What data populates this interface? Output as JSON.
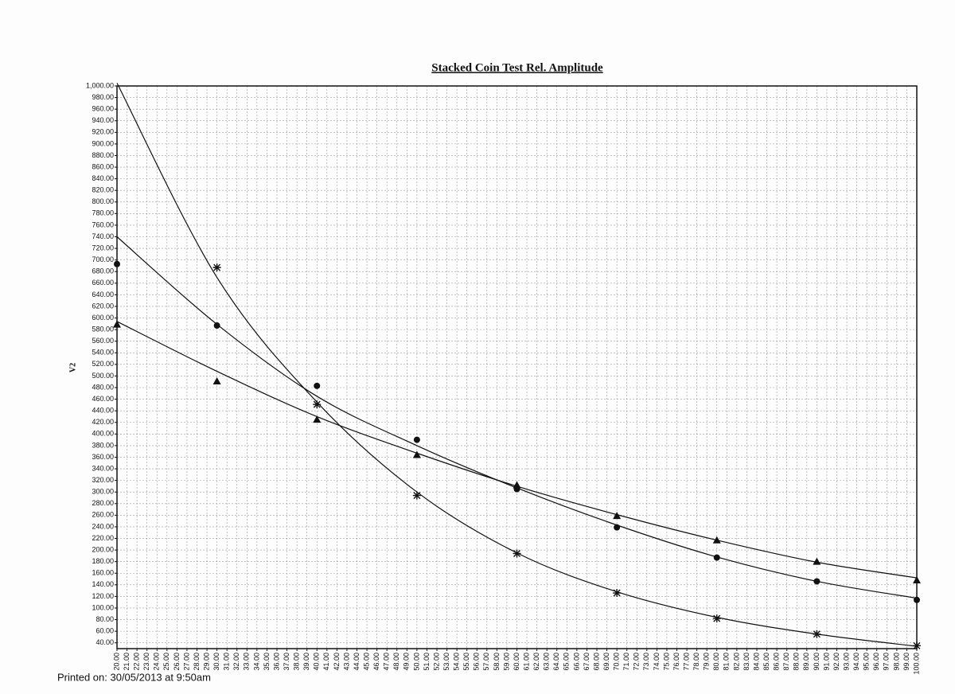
{
  "chart_data": {
    "type": "scatter",
    "title": "Stacked Coin Test  Rel. Amplitude",
    "y_label": "V2",
    "footer": "Printed on: 30/05/2013 at 9:50am",
    "grid": true,
    "x": [
      20,
      30,
      40,
      50,
      60,
      70,
      80,
      90,
      100
    ],
    "series": [
      {
        "marker": "star",
        "color": "#111111",
        "values": [
          null,
          687,
          451,
          294,
          194,
          126,
          82,
          55,
          35
        ],
        "fit": [
          1005,
          670,
          455,
          300,
          195,
          128,
          84,
          55,
          34
        ]
      },
      {
        "marker": "circle",
        "color": "#111111",
        "values": [
          693,
          587,
          483,
          390,
          305,
          239,
          187,
          146,
          114
        ],
        "fit": [
          740,
          589,
          465,
          380,
          307,
          243,
          188,
          146,
          117
        ]
      },
      {
        "marker": "triangle",
        "color": "#111111",
        "values": [
          589,
          491,
          425,
          364,
          312,
          259,
          217,
          180,
          148
        ],
        "fit": [
          594,
          508,
          430,
          367,
          310,
          261,
          217,
          179,
          152
        ]
      }
    ],
    "xlim": [
      20,
      100
    ],
    "ylim": [
      30,
      1000
    ],
    "xticks": [
      {
        "value": 20,
        "label": "20.00"
      },
      {
        "value": 21,
        "label": "21.00"
      },
      {
        "value": 22,
        "label": "22.00"
      },
      {
        "value": 23,
        "label": "23.00"
      },
      {
        "value": 24,
        "label": "24.00"
      },
      {
        "value": 25,
        "label": "25.00"
      },
      {
        "value": 26,
        "label": "26.00"
      },
      {
        "value": 27,
        "label": "27.00"
      },
      {
        "value": 28,
        "label": "28.00"
      },
      {
        "value": 29,
        "label": "29.00"
      },
      {
        "value": 30,
        "label": "30.00"
      },
      {
        "value": 31,
        "label": "31.00"
      },
      {
        "value": 32,
        "label": "32.00"
      },
      {
        "value": 33,
        "label": "33.00"
      },
      {
        "value": 34,
        "label": "34.00"
      },
      {
        "value": 35,
        "label": "35.00"
      },
      {
        "value": 36,
        "label": "36.00"
      },
      {
        "value": 37,
        "label": "37.00"
      },
      {
        "value": 38,
        "label": "38.00"
      },
      {
        "value": 39,
        "label": "39.00"
      },
      {
        "value": 40,
        "label": "40.00"
      },
      {
        "value": 41,
        "label": "41.00"
      },
      {
        "value": 42,
        "label": "42.00"
      },
      {
        "value": 43,
        "label": "43.00"
      },
      {
        "value": 44,
        "label": "44.00"
      },
      {
        "value": 45,
        "label": "45.00"
      },
      {
        "value": 46,
        "label": "46.00"
      },
      {
        "value": 47,
        "label": "47.00"
      },
      {
        "value": 48,
        "label": "48.00"
      },
      {
        "value": 49,
        "label": "49.00"
      },
      {
        "value": 50,
        "label": "50.00"
      },
      {
        "value": 51,
        "label": "51.00"
      },
      {
        "value": 52,
        "label": "52.00"
      },
      {
        "value": 53,
        "label": "53.00"
      },
      {
        "value": 54,
        "label": "54.00"
      },
      {
        "value": 55,
        "label": "55.00"
      },
      {
        "value": 56,
        "label": "56.00"
      },
      {
        "value": 57,
        "label": "57.00"
      },
      {
        "value": 58,
        "label": "58.00"
      },
      {
        "value": 59,
        "label": "59.00"
      },
      {
        "value": 60,
        "label": "60.00"
      },
      {
        "value": 61,
        "label": "61.00"
      },
      {
        "value": 62,
        "label": "62.00"
      },
      {
        "value": 63,
        "label": "63.00"
      },
      {
        "value": 64,
        "label": "64.00"
      },
      {
        "value": 65,
        "label": "65.00"
      },
      {
        "value": 66,
        "label": "66.00"
      },
      {
        "value": 67,
        "label": "67.00"
      },
      {
        "value": 68,
        "label": "68.00"
      },
      {
        "value": 69,
        "label": "69.00"
      },
      {
        "value": 70,
        "label": "70.00"
      },
      {
        "value": 71,
        "label": "71.00"
      },
      {
        "value": 72,
        "label": "72.00"
      },
      {
        "value": 73,
        "label": "73.00"
      },
      {
        "value": 74,
        "label": "74.00"
      },
      {
        "value": 75,
        "label": "75.00"
      },
      {
        "value": 76,
        "label": "76.00"
      },
      {
        "value": 77,
        "label": "77.00"
      },
      {
        "value": 78,
        "label": "78.00"
      },
      {
        "value": 79,
        "label": "79.00"
      },
      {
        "value": 80,
        "label": "80.00"
      },
      {
        "value": 81,
        "label": "81.00"
      },
      {
        "value": 82,
        "label": "82.00"
      },
      {
        "value": 83,
        "label": "83.00"
      },
      {
        "value": 84,
        "label": "84.00"
      },
      {
        "value": 85,
        "label": "85.00"
      },
      {
        "value": 86,
        "label": "86.00"
      },
      {
        "value": 87,
        "label": "87.00"
      },
      {
        "value": 88,
        "label": "88.00"
      },
      {
        "value": 89,
        "label": "89.00"
      },
      {
        "value": 90,
        "label": "90.00"
      },
      {
        "value": 91,
        "label": "91.00"
      },
      {
        "value": 92,
        "label": "92.00"
      },
      {
        "value": 93,
        "label": "93.00"
      },
      {
        "value": 94,
        "label": "94.00"
      },
      {
        "value": 95,
        "label": "95.00"
      },
      {
        "value": 96,
        "label": "96.00"
      },
      {
        "value": 97,
        "label": "97.00"
      },
      {
        "value": 98,
        "label": "98.00"
      },
      {
        "value": 99,
        "label": "99.00"
      },
      {
        "value": 100,
        "label": "100.00"
      }
    ],
    "yticks": [
      {
        "value": 40,
        "label": "40.00"
      },
      {
        "value": 60,
        "label": "60.00"
      },
      {
        "value": 80,
        "label": "80.00"
      },
      {
        "value": 100,
        "label": "100.00"
      },
      {
        "value": 120,
        "label": "120.00"
      },
      {
        "value": 140,
        "label": "140.00"
      },
      {
        "value": 160,
        "label": "160.00"
      },
      {
        "value": 180,
        "label": "180.00"
      },
      {
        "value": 200,
        "label": "200.00"
      },
      {
        "value": 220,
        "label": "220.00"
      },
      {
        "value": 240,
        "label": "240.00"
      },
      {
        "value": 260,
        "label": "260.00"
      },
      {
        "value": 280,
        "label": "280.00"
      },
      {
        "value": 300,
        "label": "300.00"
      },
      {
        "value": 320,
        "label": "320.00"
      },
      {
        "value": 340,
        "label": "340.00"
      },
      {
        "value": 360,
        "label": "360.00"
      },
      {
        "value": 380,
        "label": "380.00"
      },
      {
        "value": 400,
        "label": "400.00"
      },
      {
        "value": 420,
        "label": "420.00"
      },
      {
        "value": 440,
        "label": "440.00"
      },
      {
        "value": 460,
        "label": "460.00"
      },
      {
        "value": 480,
        "label": "480.00"
      },
      {
        "value": 500,
        "label": "500.00"
      },
      {
        "value": 520,
        "label": "520.00"
      },
      {
        "value": 540,
        "label": "540.00"
      },
      {
        "value": 560,
        "label": "560.00"
      },
      {
        "value": 580,
        "label": "580.00"
      },
      {
        "value": 600,
        "label": "600.00"
      },
      {
        "value": 620,
        "label": "620.00"
      },
      {
        "value": 640,
        "label": "640.00"
      },
      {
        "value": 660,
        "label": "660.00"
      },
      {
        "value": 680,
        "label": "680.00"
      },
      {
        "value": 700,
        "label": "700.00"
      },
      {
        "value": 720,
        "label": "720.00"
      },
      {
        "value": 740,
        "label": "740.00"
      },
      {
        "value": 760,
        "label": "760.00"
      },
      {
        "value": 780,
        "label": "780.00"
      },
      {
        "value": 800,
        "label": "800.00"
      },
      {
        "value": 820,
        "label": "820.00"
      },
      {
        "value": 840,
        "label": "840.00"
      },
      {
        "value": 860,
        "label": "860.00"
      },
      {
        "value": 880,
        "label": "880.00"
      },
      {
        "value": 900,
        "label": "900.00"
      },
      {
        "value": 920,
        "label": "920.00"
      },
      {
        "value": 940,
        "label": "940.00"
      },
      {
        "value": 960,
        "label": "960.00"
      },
      {
        "value": 980,
        "label": "980.00"
      },
      {
        "value": 1000,
        "label": "1,000.00"
      }
    ]
  }
}
